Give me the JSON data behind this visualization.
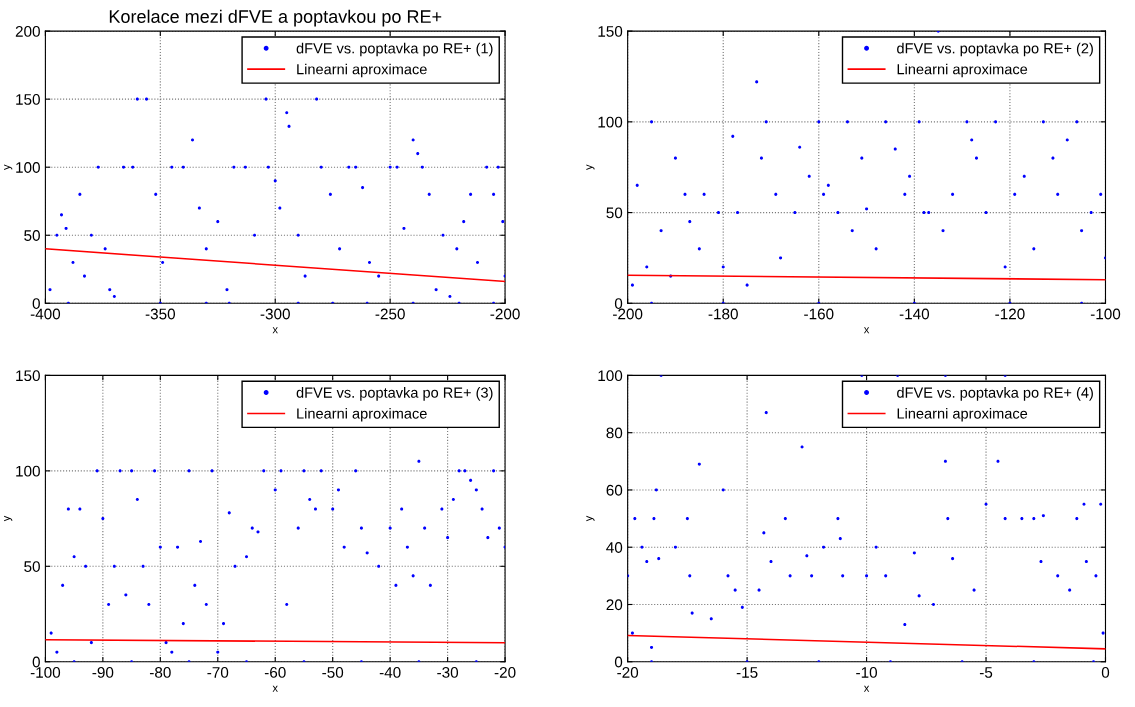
{
  "chart_data": [
    {
      "type": "scatter",
      "title": "Korelace mezi dFVE a poptavkou po RE+",
      "xlabel": "x",
      "ylabel": "y",
      "xlim": [
        -400,
        -200
      ],
      "ylim": [
        0,
        200
      ],
      "xticks": [
        -400,
        -350,
        -300,
        -250,
        -200
      ],
      "yticks": [
        0,
        50,
        100,
        150,
        200
      ],
      "grid": true,
      "legend": "top right",
      "series": [
        {
          "name": "dFVE vs. poptavka po RE+ (1)",
          "marker": "circle",
          "color": "#0000ff",
          "x": [
            -398,
            -395,
            -393,
            -391,
            -388,
            -385,
            -383,
            -380,
            -377,
            -374,
            -372,
            -370,
            -366,
            -362,
            -360,
            -356,
            -352,
            -349,
            -345,
            -340,
            -336,
            -333,
            -330,
            -325,
            -321,
            -318,
            -313,
            -309,
            -304,
            -303,
            -300,
            -298,
            -295,
            -294,
            -290,
            -287,
            -282,
            -280,
            -276,
            -272,
            -268,
            -265,
            -262,
            -259,
            -255,
            -250,
            -247,
            -244,
            -240,
            -238,
            -236,
            -233,
            -230,
            -227,
            -224,
            -221,
            -218,
            -215,
            -212,
            -208,
            -205,
            -203,
            -201,
            -200,
            -390,
            -350,
            -320,
            -290,
            -260,
            -240,
            -220,
            -205,
            -330,
            -275
          ],
          "values": [
            10,
            50,
            65,
            55,
            30,
            80,
            20,
            50,
            100,
            40,
            10,
            5,
            100,
            100,
            150,
            150,
            80,
            30,
            100,
            100,
            120,
            70,
            40,
            60,
            10,
            100,
            100,
            50,
            150,
            100,
            90,
            70,
            140,
            130,
            50,
            20,
            150,
            100,
            80,
            40,
            100,
            100,
            85,
            30,
            20,
            100,
            100,
            55,
            120,
            110,
            100,
            80,
            10,
            50,
            5,
            40,
            60,
            80,
            30,
            100,
            80,
            100,
            60,
            20,
            0,
            0,
            0,
            0,
            0,
            0,
            0,
            0,
            0,
            0
          ]
        },
        {
          "name": "Linearni aproximace",
          "type": "line",
          "marker": "none",
          "line_style": "solid",
          "color": "#ff0000",
          "x": [
            -400,
            -200
          ],
          "values": [
            40,
            16
          ]
        }
      ]
    },
    {
      "type": "scatter",
      "xlabel": "x",
      "ylabel": "y",
      "xlim": [
        -200,
        -100
      ],
      "ylim": [
        0,
        150
      ],
      "xticks": [
        -200,
        -180,
        -160,
        -140,
        -120,
        -100
      ],
      "yticks": [
        0,
        50,
        100,
        150
      ],
      "grid": true,
      "legend": "top right",
      "series": [
        {
          "name": "dFVE vs. poptavka po RE+ (2)",
          "marker": "circle",
          "color": "#0000ff",
          "x": [
            -199,
            -198,
            -196,
            -195,
            -193,
            -191,
            -190,
            -188,
            -187,
            -185,
            -184,
            -181,
            -180,
            -178,
            -177,
            -175,
            -173,
            -172,
            -171,
            -169,
            -168,
            -165,
            -164,
            -162,
            -160,
            -159,
            -158,
            -156,
            -154,
            -153,
            -151,
            -150,
            -148,
            -146,
            -144,
            -142,
            -141,
            -139,
            -138,
            -137,
            -135,
            -134,
            -132,
            -129,
            -128,
            -127,
            -125,
            -123,
            -121,
            -119,
            -117,
            -115,
            -113,
            -111,
            -110,
            -108,
            -106,
            -105,
            -103,
            -101,
            -100,
            -195,
            -180,
            -160,
            -140,
            -120,
            -105
          ],
          "values": [
            10,
            65,
            20,
            100,
            40,
            15,
            80,
            60,
            45,
            30,
            60,
            50,
            20,
            92,
            50,
            10,
            122,
            80,
            100,
            60,
            25,
            50,
            86,
            70,
            100,
            60,
            65,
            50,
            100,
            40,
            80,
            52,
            30,
            100,
            85,
            60,
            70,
            100,
            50,
            50,
            150,
            40,
            60,
            100,
            90,
            80,
            50,
            100,
            20,
            60,
            70,
            30,
            100,
            80,
            60,
            90,
            100,
            40,
            50,
            60,
            25,
            0,
            0,
            0,
            0,
            0,
            0
          ]
        },
        {
          "name": "Linearni aproximace",
          "type": "line",
          "marker": "none",
          "line_style": "solid",
          "color": "#ff0000",
          "x": [
            -200,
            -100
          ],
          "values": [
            15.5,
            13
          ]
        }
      ]
    },
    {
      "type": "scatter",
      "xlabel": "x",
      "ylabel": "y",
      "xlim": [
        -100,
        -20
      ],
      "ylim": [
        0,
        150
      ],
      "xticks": [
        -100,
        -90,
        -80,
        -70,
        -60,
        -50,
        -40,
        -30,
        -20
      ],
      "yticks": [
        0,
        50,
        100,
        150
      ],
      "grid": true,
      "legend": "top right",
      "series": [
        {
          "name": "dFVE vs. poptavka po RE+ (3)",
          "marker": "circle",
          "color": "#0000ff",
          "x": [
            -99,
            -98,
            -97,
            -96,
            -95,
            -94,
            -93,
            -92,
            -91,
            -90,
            -89,
            -88,
            -87,
            -86,
            -85,
            -84,
            -83,
            -82,
            -81,
            -80,
            -79,
            -78,
            -77,
            -76,
            -75,
            -74,
            -73,
            -72,
            -71,
            -70,
            -69,
            -68,
            -67,
            -65,
            -64,
            -63,
            -62,
            -60,
            -59,
            -58,
            -56,
            -55,
            -54,
            -53,
            -52,
            -50,
            -49,
            -48,
            -46,
            -45,
            -44,
            -42,
            -40,
            -39,
            -38,
            -37,
            -36,
            -35,
            -34,
            -33,
            -31,
            -30,
            -29,
            -28,
            -27,
            -26,
            -25,
            -24,
            -23,
            -22,
            -21,
            -20,
            -95,
            -85,
            -75,
            -65,
            -55,
            -45,
            -35,
            -25
          ],
          "values": [
            15,
            5,
            40,
            80,
            55,
            80,
            50,
            10,
            100,
            75,
            30,
            50,
            100,
            35,
            100,
            85,
            50,
            30,
            100,
            60,
            10,
            5,
            60,
            20,
            100,
            40,
            63,
            30,
            100,
            5,
            20,
            78,
            50,
            55,
            70,
            68,
            100,
            90,
            100,
            30,
            70,
            100,
            85,
            80,
            100,
            80,
            90,
            60,
            100,
            70,
            57,
            50,
            70,
            40,
            80,
            60,
            45,
            105,
            70,
            40,
            80,
            65,
            85,
            100,
            100,
            95,
            90,
            80,
            65,
            100,
            70,
            60,
            0,
            0,
            0,
            0,
            0,
            0,
            0,
            0
          ]
        },
        {
          "name": "Linearni aproximace",
          "type": "line",
          "marker": "none",
          "line_style": "solid",
          "color": "#ff0000",
          "x": [
            -100,
            -20
          ],
          "values": [
            11.5,
            10
          ]
        }
      ]
    },
    {
      "type": "scatter",
      "xlabel": "x",
      "ylabel": "y",
      "xlim": [
        -20,
        0
      ],
      "ylim": [
        0,
        100
      ],
      "xticks": [
        -20,
        -15,
        -10,
        -5,
        0
      ],
      "yticks": [
        0,
        20,
        40,
        60,
        80,
        100
      ],
      "grid": true,
      "legend": "top right",
      "series": [
        {
          "name": "dFVE vs. poptavka po RE+ (4)",
          "marker": "circle",
          "color": "#0000ff",
          "x": [
            -20,
            -19.8,
            -19.7,
            -19.4,
            -19.2,
            -19,
            -18.9,
            -18.8,
            -18.7,
            -18.6,
            -18,
            -17.5,
            -17.4,
            -17.3,
            -17,
            -16.5,
            -16,
            -15.8,
            -15.5,
            -15.2,
            -14.5,
            -14.3,
            -14.2,
            -14,
            -13.4,
            -13.2,
            -12.7,
            -12.5,
            -12.3,
            -11.8,
            -11.2,
            -11.1,
            -11,
            -10.2,
            -10,
            -9.6,
            -9.2,
            -8.7,
            -8.4,
            -8,
            -7.8,
            -7.2,
            -6.7,
            -6.7,
            -6.6,
            -6.4,
            -5.5,
            -5,
            -4.5,
            -4.2,
            -4.2,
            -3.5,
            -3,
            -2.6,
            -2.7,
            -2,
            -1.5,
            -1.2,
            -0.9,
            -0.8,
            -0.4,
            -0.2,
            -0.1,
            -19,
            -15,
            -12,
            -9,
            -6,
            -3,
            -0.5
          ],
          "values": [
            30,
            10,
            50,
            40,
            35,
            5,
            50,
            60,
            36,
            100,
            40,
            50,
            30,
            17,
            69,
            15,
            60,
            30,
            25,
            19,
            25,
            45,
            87,
            35,
            50,
            30,
            75,
            37,
            30,
            40,
            50,
            43,
            30,
            100,
            30,
            40,
            30,
            100,
            13,
            38,
            23,
            20,
            100,
            70,
            50,
            36,
            25,
            55,
            70,
            100,
            50,
            50,
            50,
            51,
            35,
            30,
            25,
            50,
            55,
            35,
            30,
            55,
            10,
            0,
            0,
            0,
            0,
            0,
            0,
            0
          ]
        },
        {
          "name": "Linearni aproximace",
          "type": "line",
          "marker": "none",
          "line_style": "solid",
          "color": "#ff0000",
          "x": [
            -20,
            0
          ],
          "values": [
            9.2,
            4.5
          ]
        }
      ]
    }
  ]
}
